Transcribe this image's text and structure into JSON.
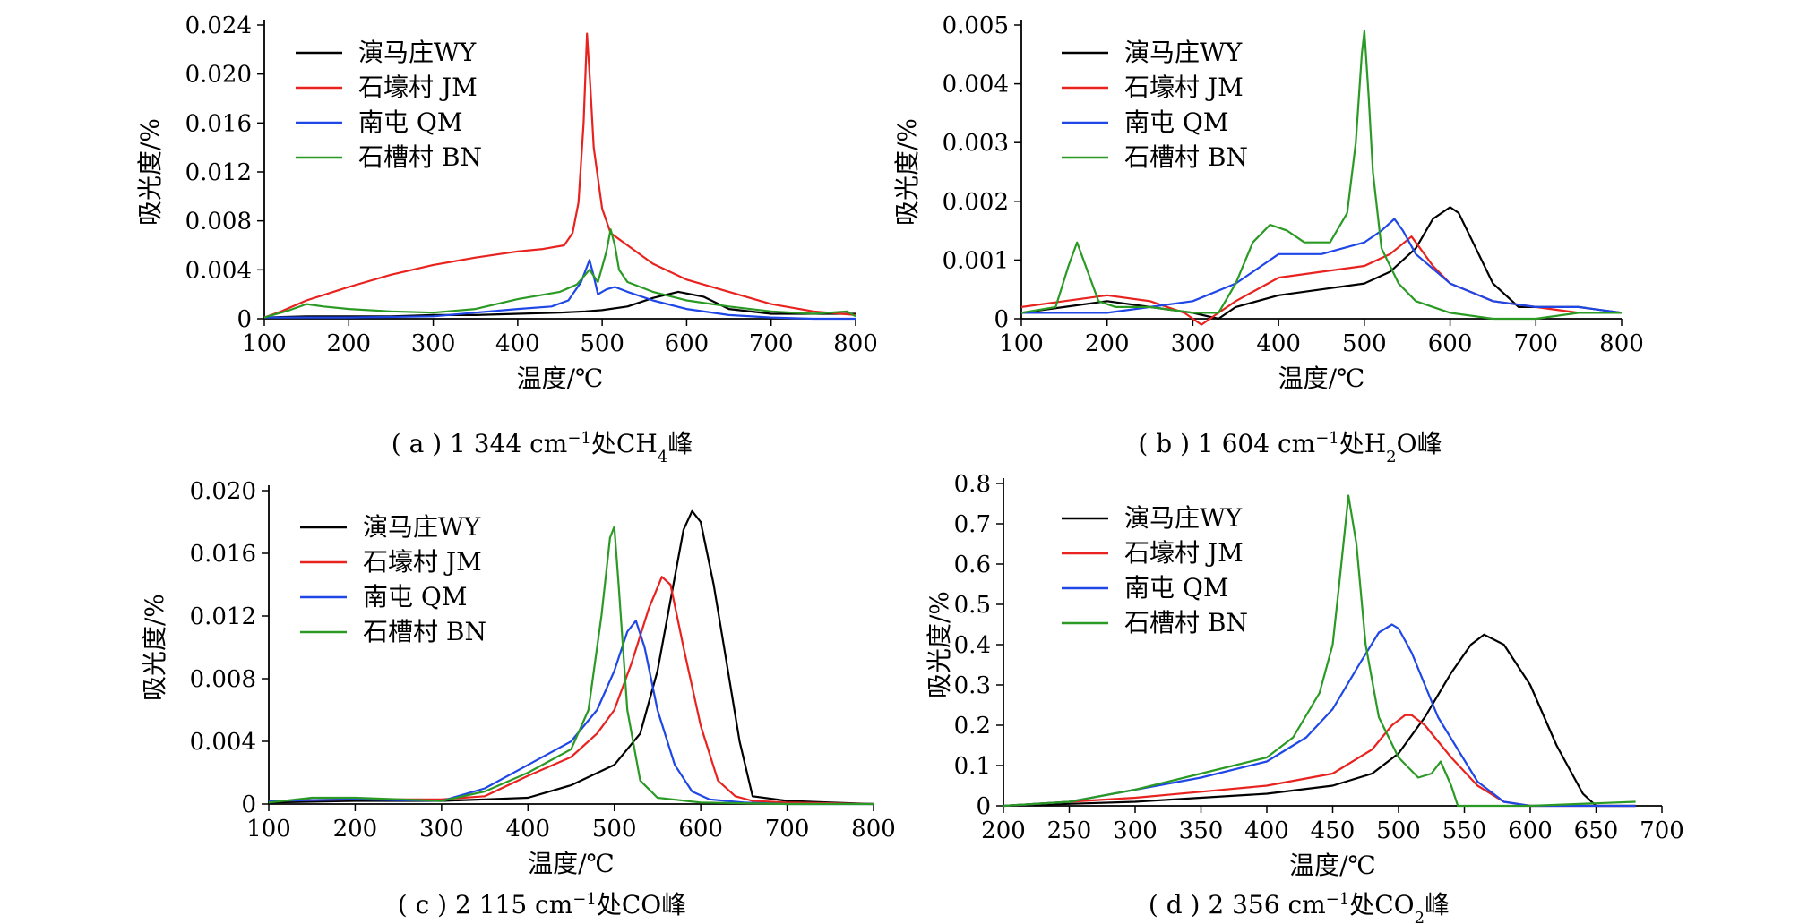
{
  "colors": {
    "WY": "#000000",
    "JM": "#e8231f",
    "QM": "#1f47e6",
    "BN": "#2a9a24"
  },
  "legend": [
    "演马庄WY",
    "石壕村 JM",
    "南屯 QM",
    "石槽村 BN"
  ],
  "captions": {
    "a": {
      "pre": "( a ) 1 344 cm",
      "sup": "−1",
      "mid": "处CH",
      "sub": "4",
      "post": "峰"
    },
    "b": {
      "pre": "( b ) 1 604 cm",
      "sup": "−1",
      "mid": "处H",
      "sub": "2",
      "post": "O峰"
    },
    "c": {
      "pre": "( c ) 2 115 cm",
      "sup": "−1",
      "mid": "处CO峰",
      "sub": "",
      "post": ""
    },
    "d": {
      "pre": "( d ) 2 356 cm",
      "sup": "−1",
      "mid": "处CO",
      "sub": "2",
      "post": "峰"
    }
  },
  "chart_data": [
    {
      "id": "a",
      "type": "line",
      "xlabel": "温度/℃",
      "ylabel": "吸光度/%",
      "xlim": [
        100,
        800
      ],
      "ylim": [
        0,
        0.024
      ],
      "xticks": [
        "100",
        "200",
        "300",
        "400",
        "500",
        "600",
        "700",
        "800"
      ],
      "yticks": [
        "0",
        "0.004",
        "0.008",
        "0.012",
        "0.016",
        "0.020",
        "0.024"
      ],
      "series": [
        {
          "name": "演马庄WY",
          "color": "#000000",
          "x": [
            100,
            150,
            200,
            250,
            300,
            350,
            400,
            450,
            480,
            500,
            530,
            560,
            590,
            620,
            650,
            700,
            750,
            800
          ],
          "y": [
            0.0001,
            0.0002,
            0.0002,
            0.0002,
            0.0003,
            0.0003,
            0.0004,
            0.0005,
            0.0006,
            0.0007,
            0.001,
            0.0017,
            0.0022,
            0.0018,
            0.0008,
            0.0004,
            0.0004,
            0.0004
          ]
        },
        {
          "name": "石壕村 JM",
          "color": "#e8231f",
          "x": [
            100,
            120,
            150,
            200,
            250,
            300,
            350,
            400,
            430,
            455,
            465,
            472,
            478,
            482,
            486,
            490,
            495,
            500,
            510,
            530,
            560,
            600,
            650,
            700,
            750,
            800
          ],
          "y": [
            0.0001,
            0.0006,
            0.0015,
            0.0026,
            0.0036,
            0.0044,
            0.005,
            0.0055,
            0.0057,
            0.006,
            0.007,
            0.0095,
            0.016,
            0.0233,
            0.019,
            0.014,
            0.0115,
            0.009,
            0.007,
            0.006,
            0.0045,
            0.0032,
            0.0022,
            0.0012,
            0.0006,
            0.0003
          ]
        },
        {
          "name": "南屯 QM",
          "color": "#1f47e6",
          "x": [
            100,
            200,
            300,
            350,
            400,
            440,
            460,
            475,
            485,
            490,
            495,
            505,
            515,
            530,
            560,
            600,
            650,
            700,
            750,
            800
          ],
          "y": [
            0.0001,
            0.0001,
            0.0002,
            0.0005,
            0.0008,
            0.001,
            0.0015,
            0.003,
            0.0048,
            0.0035,
            0.002,
            0.0024,
            0.0026,
            0.0022,
            0.0015,
            0.0008,
            0.0003,
            0.0001,
            0.0,
            0.0
          ]
        },
        {
          "name": "石槽村 BN",
          "color": "#2a9a24",
          "x": [
            100,
            130,
            150,
            170,
            200,
            250,
            300,
            350,
            400,
            450,
            470,
            485,
            495,
            505,
            510,
            515,
            520,
            530,
            560,
            600,
            650,
            700,
            750,
            790,
            800
          ],
          "y": [
            0.0001,
            0.0007,
            0.0012,
            0.001,
            0.0008,
            0.0006,
            0.0005,
            0.0008,
            0.0016,
            0.0022,
            0.0028,
            0.004,
            0.003,
            0.0055,
            0.0073,
            0.006,
            0.004,
            0.003,
            0.0022,
            0.0015,
            0.001,
            0.0006,
            0.0004,
            0.0006,
            0.0002
          ]
        }
      ]
    },
    {
      "id": "b",
      "type": "line",
      "xlabel": "温度/℃",
      "ylabel": "吸光度/%",
      "xlim": [
        100,
        800
      ],
      "ylim": [
        0,
        0.005
      ],
      "xticks": [
        "100",
        "200",
        "300",
        "400",
        "500",
        "600",
        "700",
        "800"
      ],
      "yticks": [
        "0",
        "0.001",
        "0.002",
        "0.003",
        "0.004",
        "0.005"
      ],
      "series": [
        {
          "name": "演马庄WY",
          "color": "#000000",
          "x": [
            100,
            150,
            200,
            250,
            300,
            330,
            350,
            400,
            450,
            500,
            530,
            560,
            580,
            600,
            610,
            630,
            650,
            680,
            700,
            750,
            800
          ],
          "y": [
            0.0001,
            0.0002,
            0.0003,
            0.0002,
            0.0001,
            0.0,
            0.0002,
            0.0004,
            0.0005,
            0.0006,
            0.0008,
            0.0012,
            0.0017,
            0.0019,
            0.0018,
            0.0012,
            0.0006,
            0.0002,
            0.0002,
            0.0002,
            0.0001
          ]
        },
        {
          "name": "石壕村 JM",
          "color": "#e8231f",
          "x": [
            100,
            150,
            200,
            250,
            290,
            310,
            330,
            350,
            400,
            450,
            500,
            530,
            555,
            565,
            580,
            600,
            650,
            700,
            750,
            800
          ],
          "y": [
            0.0002,
            0.0003,
            0.0004,
            0.0003,
            0.0001,
            -0.0001,
            0.0001,
            0.0003,
            0.0007,
            0.0008,
            0.0009,
            0.0011,
            0.0014,
            0.0012,
            0.0009,
            0.0006,
            0.0003,
            0.0002,
            0.0001,
            0.0001
          ]
        },
        {
          "name": "南屯 QM",
          "color": "#1f47e6",
          "x": [
            100,
            150,
            200,
            250,
            300,
            350,
            380,
            400,
            450,
            500,
            520,
            535,
            545,
            560,
            600,
            650,
            700,
            750,
            800
          ],
          "y": [
            0.0001,
            0.0001,
            0.0001,
            0.0002,
            0.0003,
            0.0006,
            0.0009,
            0.0011,
            0.0011,
            0.0013,
            0.0015,
            0.0017,
            0.0015,
            0.0011,
            0.0006,
            0.0003,
            0.0002,
            0.0002,
            0.0001
          ]
        },
        {
          "name": "石槽村 BN",
          "color": "#2a9a24",
          "x": [
            100,
            140,
            155,
            165,
            175,
            190,
            210,
            250,
            300,
            330,
            350,
            370,
            390,
            410,
            430,
            460,
            480,
            490,
            497,
            500,
            505,
            510,
            520,
            540,
            560,
            600,
            650,
            700,
            750,
            800
          ],
          "y": [
            0.0001,
            0.0002,
            0.0009,
            0.0013,
            0.0009,
            0.0003,
            0.0002,
            0.0002,
            0.0001,
            0.0001,
            0.0006,
            0.0013,
            0.0016,
            0.0015,
            0.0013,
            0.0013,
            0.0018,
            0.003,
            0.0045,
            0.0049,
            0.0038,
            0.0025,
            0.0012,
            0.0006,
            0.0003,
            0.0001,
            0.0,
            0.0,
            0.0001,
            0.0001
          ]
        }
      ]
    },
    {
      "id": "c",
      "type": "line",
      "xlabel": "温度/℃",
      "ylabel": "吸光度/%",
      "xlim": [
        100,
        800
      ],
      "ylim": [
        0,
        0.02
      ],
      "xticks": [
        "100",
        "200",
        "300",
        "400",
        "500",
        "600",
        "700",
        "800"
      ],
      "yticks": [
        "0",
        "0.004",
        "0.008",
        "0.012",
        "0.016",
        "0.020"
      ],
      "series": [
        {
          "name": "演马庄WY",
          "color": "#000000",
          "x": [
            100,
            200,
            300,
            350,
            400,
            450,
            500,
            530,
            550,
            565,
            580,
            590,
            600,
            615,
            630,
            645,
            660,
            700,
            750,
            800
          ],
          "y": [
            0.0001,
            0.0002,
            0.0002,
            0.0003,
            0.0004,
            0.0012,
            0.0025,
            0.0045,
            0.0085,
            0.013,
            0.0175,
            0.0187,
            0.018,
            0.014,
            0.009,
            0.004,
            0.0005,
            0.0002,
            0.0001,
            0.0
          ]
        },
        {
          "name": "石壕村 JM",
          "color": "#e8231f",
          "x": [
            100,
            200,
            300,
            350,
            400,
            450,
            480,
            500,
            520,
            540,
            555,
            565,
            580,
            600,
            620,
            640,
            660,
            700,
            800
          ],
          "y": [
            0.0002,
            0.0003,
            0.0003,
            0.0005,
            0.0018,
            0.003,
            0.0045,
            0.006,
            0.009,
            0.0125,
            0.0145,
            0.014,
            0.01,
            0.005,
            0.0015,
            0.0005,
            0.0002,
            0.0001,
            0.0
          ]
        },
        {
          "name": "南屯 QM",
          "color": "#1f47e6",
          "x": [
            100,
            200,
            300,
            350,
            400,
            450,
            480,
            500,
            515,
            525,
            535,
            550,
            570,
            590,
            610,
            650,
            700,
            800
          ],
          "y": [
            0.0002,
            0.0003,
            0.0002,
            0.001,
            0.0025,
            0.004,
            0.006,
            0.0085,
            0.011,
            0.0117,
            0.01,
            0.006,
            0.0025,
            0.0008,
            0.0003,
            0.0001,
            0.0,
            0.0
          ]
        },
        {
          "name": "石槽村 BN",
          "color": "#2a9a24",
          "x": [
            100,
            150,
            200,
            300,
            350,
            400,
            450,
            470,
            485,
            495,
            500,
            505,
            515,
            530,
            550,
            600,
            700,
            800
          ],
          "y": [
            0.0001,
            0.0004,
            0.0004,
            0.0002,
            0.0008,
            0.002,
            0.0035,
            0.006,
            0.012,
            0.017,
            0.0177,
            0.014,
            0.006,
            0.0015,
            0.0004,
            0.0001,
            0.0,
            0.0
          ]
        }
      ]
    },
    {
      "id": "d",
      "type": "line",
      "xlabel": "温度/℃",
      "ylabel": "吸光度/%",
      "xlim": [
        200,
        700
      ],
      "ylim": [
        0,
        0.8
      ],
      "xticks": [
        "200",
        "250",
        "300",
        "350",
        "400",
        "450",
        "500",
        "550",
        "600",
        "650",
        "700"
      ],
      "yticks": [
        "0",
        "0.1",
        "0.2",
        "0.3",
        "0.4",
        "0.5",
        "0.6",
        "0.7",
        "0.8"
      ],
      "series": [
        {
          "name": "演马庄WY",
          "color": "#000000",
          "x": [
            200,
            250,
            300,
            350,
            400,
            450,
            480,
            500,
            520,
            540,
            555,
            565,
            580,
            600,
            620,
            640,
            650,
            680
          ],
          "y": [
            0.0,
            0.005,
            0.01,
            0.02,
            0.03,
            0.05,
            0.08,
            0.13,
            0.22,
            0.33,
            0.4,
            0.425,
            0.4,
            0.3,
            0.15,
            0.03,
            0.0,
            0.0
          ]
        },
        {
          "name": "石壕村 JM",
          "color": "#e8231f",
          "x": [
            200,
            250,
            300,
            350,
            400,
            450,
            480,
            495,
            505,
            510,
            520,
            540,
            560,
            580,
            600,
            680
          ],
          "y": [
            0.0,
            0.01,
            0.02,
            0.035,
            0.05,
            0.08,
            0.14,
            0.2,
            0.225,
            0.225,
            0.2,
            0.12,
            0.05,
            0.01,
            0.0,
            0.0
          ]
        },
        {
          "name": "南屯 QM",
          "color": "#1f47e6",
          "x": [
            200,
            250,
            300,
            350,
            400,
            430,
            450,
            470,
            485,
            495,
            500,
            510,
            530,
            560,
            580,
            600,
            680
          ],
          "y": [
            0.0,
            0.01,
            0.04,
            0.07,
            0.11,
            0.17,
            0.24,
            0.35,
            0.43,
            0.45,
            0.44,
            0.38,
            0.22,
            0.06,
            0.01,
            0.0,
            0.0
          ]
        },
        {
          "name": "石槽村 BN",
          "color": "#2a9a24",
          "x": [
            200,
            250,
            300,
            350,
            400,
            420,
            440,
            450,
            455,
            462,
            468,
            475,
            485,
            500,
            515,
            525,
            532,
            540,
            545,
            560,
            600,
            680
          ],
          "y": [
            0.0,
            0.01,
            0.04,
            0.08,
            0.12,
            0.17,
            0.28,
            0.4,
            0.55,
            0.77,
            0.65,
            0.4,
            0.22,
            0.12,
            0.07,
            0.08,
            0.11,
            0.05,
            0.0,
            0.0,
            0.0,
            0.01
          ]
        }
      ]
    }
  ]
}
